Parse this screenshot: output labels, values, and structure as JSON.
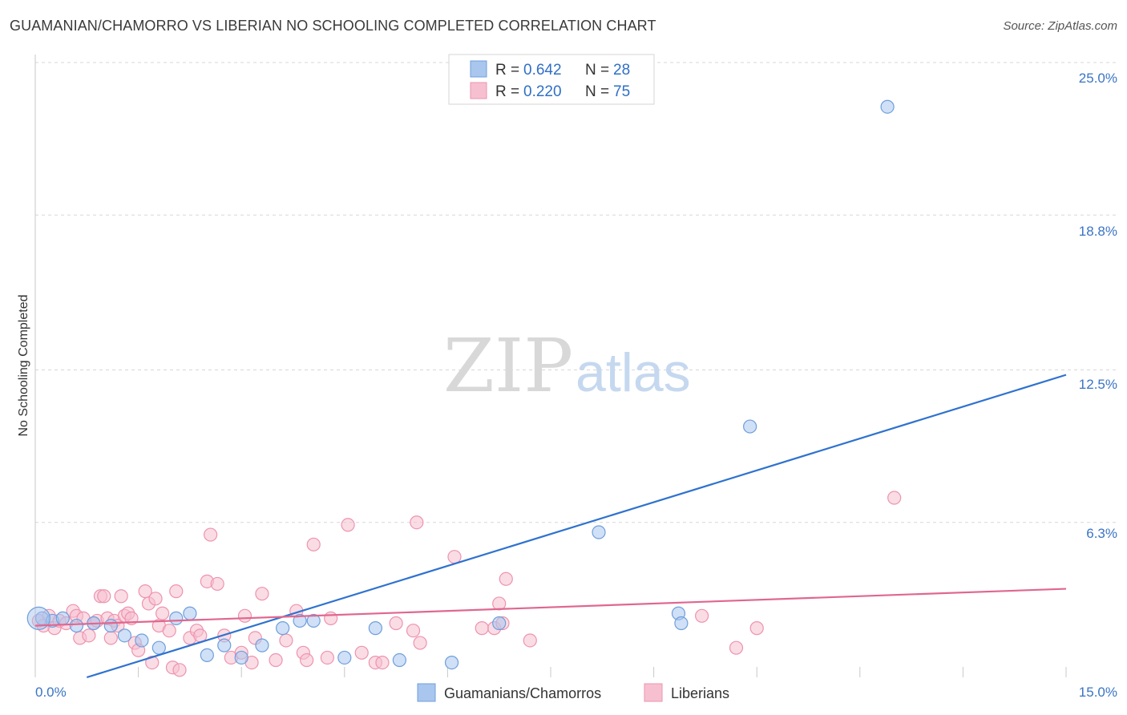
{
  "header": {
    "title": "GUAMANIAN/CHAMORRO VS LIBERIAN NO SCHOOLING COMPLETED CORRELATION CHART",
    "source": "Source: ZipAtlas.com"
  },
  "watermark": {
    "zip": "ZIP",
    "atlas": "atlas"
  },
  "legend": {
    "rows": [
      {
        "r_label": "R = ",
        "r_value": "0.642",
        "n_label": "N = ",
        "n_value": "28"
      },
      {
        "r_label": "R = ",
        "r_value": "0.220",
        "n_label": "N = ",
        "n_value": "75"
      }
    ]
  },
  "bottom_legend": [
    {
      "label": "Guamanians/Chamorros"
    },
    {
      "label": "Liberians"
    }
  ],
  "colors": {
    "blue_fill": "#a9c6ee",
    "blue_stroke": "#6f9fdc",
    "blue_line": "#2f72cf",
    "pink_fill": "#f6c0d0",
    "pink_stroke": "#ee93ae",
    "pink_line": "#e0678f",
    "grid": "#d7d7d7",
    "tick_label": "#3a74c4"
  },
  "chart_data": {
    "type": "scatter",
    "title": "GUAMANIAN/CHAMORRO VS LIBERIAN NO SCHOOLING COMPLETED CORRELATION CHART",
    "xlabel": "",
    "ylabel": "No Schooling Completed",
    "xlim": [
      0,
      15
    ],
    "ylim": [
      0,
      25
    ],
    "x_tick_labels": [
      "0.0%",
      "15.0%"
    ],
    "y_ticks": [
      6.3,
      12.5,
      18.8,
      25.0
    ],
    "y_tick_labels": [
      "6.3%",
      "12.5%",
      "18.8%",
      "25.0%"
    ],
    "series": [
      {
        "name": "Guamanians/Chamorros",
        "color": "#a9c6ee",
        "r": 0.642,
        "n": 28,
        "trend": {
          "x": [
            0.75,
            15.0
          ],
          "y": [
            0.0,
            12.3
          ]
        },
        "points": [
          [
            0.1,
            2.4
          ],
          [
            0.25,
            2.3
          ],
          [
            0.4,
            2.4
          ],
          [
            0.6,
            2.1
          ],
          [
            0.85,
            2.2
          ],
          [
            1.1,
            2.1
          ],
          [
            1.3,
            1.7
          ],
          [
            1.55,
            1.5
          ],
          [
            1.8,
            1.2
          ],
          [
            2.05,
            2.4
          ],
          [
            2.25,
            2.6
          ],
          [
            2.5,
            0.9
          ],
          [
            2.75,
            1.3
          ],
          [
            3.0,
            0.8
          ],
          [
            3.3,
            1.3
          ],
          [
            3.6,
            2.0
          ],
          [
            3.85,
            2.3
          ],
          [
            4.05,
            2.3
          ],
          [
            4.5,
            0.8
          ],
          [
            4.95,
            2.0
          ],
          [
            5.3,
            0.7
          ],
          [
            6.06,
            0.6
          ],
          [
            6.75,
            2.2
          ],
          [
            8.2,
            5.9
          ],
          [
            9.36,
            2.6
          ],
          [
            9.4,
            2.2
          ],
          [
            10.4,
            10.2
          ],
          [
            12.4,
            23.2
          ]
        ]
      },
      {
        "name": "Liberians",
        "color": "#f6c0d0",
        "r": 0.22,
        "n": 75,
        "trend": {
          "x": [
            0.0,
            15.0
          ],
          "y": [
            2.1,
            3.6
          ]
        },
        "points": [
          [
            0.05,
            2.3
          ],
          [
            0.12,
            2.1
          ],
          [
            0.2,
            2.5
          ],
          [
            0.28,
            2.0
          ],
          [
            0.35,
            2.3
          ],
          [
            0.45,
            2.2
          ],
          [
            0.55,
            2.7
          ],
          [
            0.6,
            2.5
          ],
          [
            0.65,
            1.6
          ],
          [
            0.7,
            2.4
          ],
          [
            0.78,
            1.7
          ],
          [
            0.85,
            2.2
          ],
          [
            0.9,
            2.3
          ],
          [
            0.95,
            3.3
          ],
          [
            1.0,
            3.3
          ],
          [
            1.05,
            2.4
          ],
          [
            1.1,
            1.6
          ],
          [
            1.15,
            2.3
          ],
          [
            1.2,
            2.1
          ],
          [
            1.25,
            3.3
          ],
          [
            1.3,
            2.5
          ],
          [
            1.35,
            2.6
          ],
          [
            1.4,
            2.4
          ],
          [
            1.45,
            1.4
          ],
          [
            1.5,
            1.1
          ],
          [
            1.6,
            3.5
          ],
          [
            1.65,
            3.0
          ],
          [
            1.7,
            0.6
          ],
          [
            1.75,
            3.2
          ],
          [
            1.8,
            2.1
          ],
          [
            1.85,
            2.6
          ],
          [
            1.95,
            1.9
          ],
          [
            2.0,
            0.4
          ],
          [
            2.05,
            3.5
          ],
          [
            2.1,
            0.3
          ],
          [
            2.25,
            1.6
          ],
          [
            2.35,
            1.9
          ],
          [
            2.4,
            1.7
          ],
          [
            2.5,
            3.9
          ],
          [
            2.55,
            5.8
          ],
          [
            2.65,
            3.8
          ],
          [
            2.75,
            1.7
          ],
          [
            2.85,
            0.8
          ],
          [
            3.0,
            1.0
          ],
          [
            3.05,
            2.5
          ],
          [
            3.15,
            0.6
          ],
          [
            3.2,
            1.6
          ],
          [
            3.3,
            3.4
          ],
          [
            3.5,
            0.7
          ],
          [
            3.65,
            1.5
          ],
          [
            3.8,
            2.7
          ],
          [
            3.9,
            1.0
          ],
          [
            3.95,
            0.7
          ],
          [
            4.05,
            5.4
          ],
          [
            4.25,
            0.8
          ],
          [
            4.3,
            2.4
          ],
          [
            4.55,
            6.2
          ],
          [
            4.75,
            1.0
          ],
          [
            4.95,
            0.6
          ],
          [
            5.05,
            0.6
          ],
          [
            5.25,
            2.2
          ],
          [
            5.5,
            1.9
          ],
          [
            5.55,
            6.3
          ],
          [
            5.6,
            1.4
          ],
          [
            6.1,
            4.9
          ],
          [
            6.5,
            2.0
          ],
          [
            6.68,
            2.0
          ],
          [
            6.75,
            3.0
          ],
          [
            6.8,
            2.2
          ],
          [
            6.85,
            4.0
          ],
          [
            7.2,
            1.5
          ],
          [
            9.7,
            2.5
          ],
          [
            10.2,
            1.2
          ],
          [
            10.5,
            2.0
          ],
          [
            12.5,
            7.3
          ]
        ]
      }
    ]
  }
}
